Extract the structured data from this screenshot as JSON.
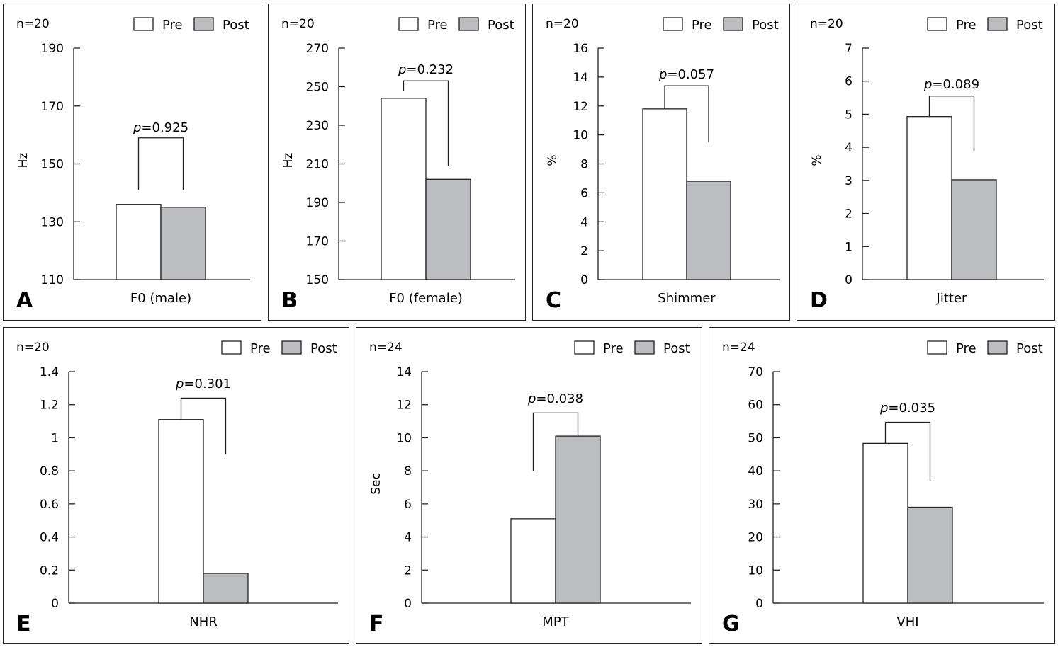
{
  "legend": {
    "pre": "Pre",
    "post": "Post"
  },
  "colors": {
    "pre": "#ffffff",
    "post": "#bcbdc0",
    "stroke": "#231f20"
  },
  "chart_data": [
    {
      "id": "A",
      "type": "bar",
      "n": "n=20",
      "category": "F0 (male)",
      "ylabel": "Hz",
      "ylim": [
        110,
        190
      ],
      "yticks": [
        110,
        130,
        150,
        170,
        190
      ],
      "tick_labels": [
        "110",
        "130",
        "150",
        "170",
        "190"
      ],
      "series": [
        {
          "name": "Pre",
          "values": [
            136
          ]
        },
        {
          "name": "Post",
          "values": [
            135
          ]
        }
      ],
      "p_prefix": "p",
      "p_value": "=0.925",
      "bracket": [
        141,
        159
      ]
    },
    {
      "id": "B",
      "type": "bar",
      "n": "n=20",
      "category": "F0 (female)",
      "ylabel": "Hz",
      "ylim": [
        150,
        270
      ],
      "yticks": [
        150,
        170,
        190,
        210,
        230,
        250,
        270
      ],
      "tick_labels": [
        "150",
        "170",
        "190",
        "210",
        "230",
        "250",
        "270"
      ],
      "series": [
        {
          "name": "Pre",
          "values": [
            244
          ]
        },
        {
          "name": "Post",
          "values": [
            202
          ]
        }
      ],
      "p_prefix": "p",
      "p_value": "=0.232",
      "bracket": [
        248,
        209,
        253
      ]
    },
    {
      "id": "C",
      "type": "bar",
      "n": "n=20",
      "category": "Shimmer",
      "ylabel": "%",
      "ylim": [
        0,
        16
      ],
      "yticks": [
        0,
        2,
        4,
        6,
        8,
        10,
        12,
        14,
        16
      ],
      "tick_labels": [
        "0",
        "2",
        "4",
        "6",
        "8",
        "10",
        "12",
        "14",
        "16"
      ],
      "series": [
        {
          "name": "Pre",
          "values": [
            11.8
          ]
        },
        {
          "name": "Post",
          "values": [
            6.8
          ]
        }
      ],
      "p_prefix": "p",
      "p_value": "=0.057",
      "bracket": [
        11.8,
        9.5,
        13.4
      ]
    },
    {
      "id": "D",
      "type": "bar",
      "n": "n=20",
      "category": "Jitter",
      "ylabel": "%",
      "ylim": [
        0,
        7
      ],
      "yticks": [
        0,
        1,
        2,
        3,
        4,
        5,
        6,
        7
      ],
      "tick_labels": [
        "0",
        "1",
        "2",
        "3",
        "4",
        "5",
        "6",
        "7"
      ],
      "series": [
        {
          "name": "Pre",
          "values": [
            4.93
          ]
        },
        {
          "name": "Post",
          "values": [
            3.02
          ]
        }
      ],
      "p_prefix": "p",
      "p_value": "=0.089",
      "bracket": [
        4.93,
        3.9,
        5.55
      ]
    },
    {
      "id": "E",
      "type": "bar",
      "n": "n=20",
      "category": "NHR",
      "ylabel": "",
      "ylim": [
        0,
        1.4
      ],
      "yticks": [
        0,
        0.2,
        0.4,
        0.6,
        0.8,
        1.0,
        1.2,
        1.4
      ],
      "tick_labels": [
        "0",
        "0.2",
        "0.4",
        "0.6",
        "0.8",
        "1",
        "1.2",
        "1.4"
      ],
      "series": [
        {
          "name": "Pre",
          "values": [
            1.11
          ]
        },
        {
          "name": "Post",
          "values": [
            0.18
          ]
        }
      ],
      "p_prefix": "p",
      "p_value": "=0.301",
      "bracket": [
        1.11,
        0.9,
        1.24
      ]
    },
    {
      "id": "F",
      "type": "bar",
      "n": "n=24",
      "category": "MPT",
      "ylabel": "Sec",
      "ylim": [
        0,
        14
      ],
      "yticks": [
        0,
        2,
        4,
        6,
        8,
        10,
        12,
        14
      ],
      "tick_labels": [
        "0",
        "2",
        "4",
        "6",
        "8",
        "10",
        "12",
        "14"
      ],
      "series": [
        {
          "name": "Pre",
          "values": [
            5.1
          ]
        },
        {
          "name": "Post",
          "values": [
            10.1
          ]
        }
      ],
      "p_prefix": "p",
      "p_value": "=0.038",
      "bracket": [
        8.0,
        10.1,
        11.5
      ]
    },
    {
      "id": "G",
      "type": "bar",
      "n": "n=24",
      "category": "VHI",
      "ylabel": "",
      "ylim": [
        0,
        70
      ],
      "yticks": [
        0,
        10,
        20,
        30,
        40,
        50,
        60,
        70
      ],
      "tick_labels": [
        "0",
        "10",
        "20",
        "30",
        "40",
        "50",
        "60",
        "70"
      ],
      "series": [
        {
          "name": "Pre",
          "values": [
            48.3
          ]
        },
        {
          "name": "Post",
          "values": [
            29.0
          ]
        }
      ],
      "p_prefix": "p",
      "p_value": "=0.035",
      "bracket": [
        48.3,
        37.0,
        54.7
      ]
    }
  ]
}
